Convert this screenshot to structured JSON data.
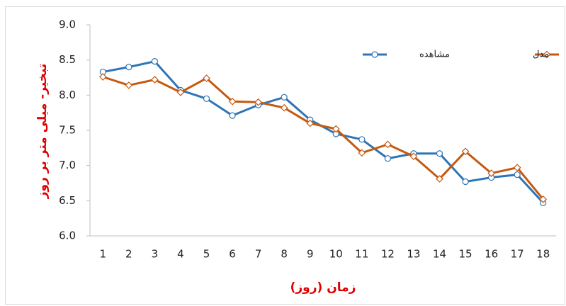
{
  "chart_data": {
    "type": "line",
    "x_label": "زمان (روز)",
    "y_label": "تبخیر- میلی متر بر روز",
    "categories": [
      1,
      2,
      3,
      4,
      5,
      6,
      7,
      8,
      9,
      10,
      11,
      12,
      13,
      14,
      15,
      16,
      17,
      18
    ],
    "series": [
      {
        "name": "مشاهده",
        "color": "#2e75b6",
        "marker": "circle",
        "values": [
          8.33,
          8.4,
          8.48,
          8.07,
          7.95,
          7.71,
          7.86,
          7.97,
          7.65,
          7.45,
          7.37,
          7.1,
          7.17,
          7.17,
          6.77,
          6.83,
          6.87,
          6.47
        ]
      },
      {
        "name": "مدل",
        "color": "#c55a11",
        "marker": "diamond",
        "values": [
          8.26,
          8.14,
          8.22,
          8.04,
          8.24,
          7.91,
          7.9,
          7.82,
          7.6,
          7.52,
          7.18,
          7.3,
          7.13,
          6.81,
          7.2,
          6.89,
          6.97,
          6.52
        ]
      }
    ],
    "ylim": [
      6.0,
      9.0
    ],
    "yticks": [
      {
        "value": 6.0,
        "label": "6.0"
      },
      {
        "value": 6.5,
        "label": "6.5"
      },
      {
        "value": 7.0,
        "label": "7.0"
      },
      {
        "value": 7.5,
        "label": "7.5"
      },
      {
        "value": 8.0,
        "label": "8.0"
      },
      {
        "value": 8.5,
        "label": "8.5"
      },
      {
        "value": 9.0,
        "label": "9.0"
      }
    ],
    "grid": false
  }
}
